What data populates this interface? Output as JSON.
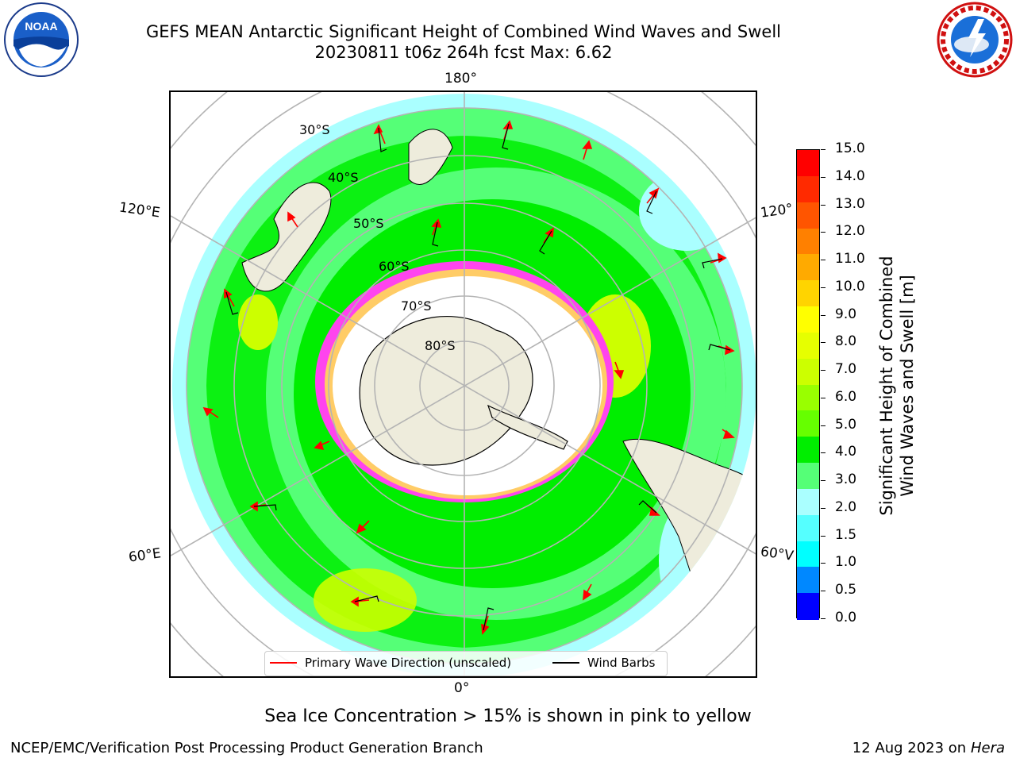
{
  "title_line1": "GEFS MEAN Antarctic Significant Height of Combined Wind Waves and Swell",
  "title_line2": "20230811 t06z 264h fcst   Max: 6.62",
  "logos": {
    "left": "NOAA",
    "right": "NATIONAL WEATHER SERVICE"
  },
  "longitude_labels": {
    "top": "180°",
    "bottom": "0°",
    "upper_left": "120°E",
    "lower_left": "60°E",
    "upper_right": "120°",
    "lower_right": "60°V"
  },
  "latitude_labels": [
    "30°S",
    "40°S",
    "50°S",
    "60°S",
    "70°S",
    "80°S"
  ],
  "legend": {
    "wave_direction": "Primary Wave Direction (unscaled)",
    "wind_barbs": "Wind Barbs"
  },
  "colorbar": {
    "title_line1": "Significant Height of Combined",
    "title_line2": "Wind Waves and Swell [m]",
    "ticks": [
      "15.0",
      "14.0",
      "13.0",
      "12.0",
      "11.0",
      "10.0",
      "9.0",
      "8.0",
      "7.0",
      "6.0",
      "5.0",
      "4.0",
      "3.0",
      "2.0",
      "1.5",
      "1.0",
      "0.5",
      "0.0"
    ],
    "colors": [
      "#ff0000",
      "#ff2a00",
      "#ff5500",
      "#ff8000",
      "#ffaa00",
      "#ffd400",
      "#ffff00",
      "#e6ff00",
      "#ccff00",
      "#99ff00",
      "#66ff00",
      "#00ee00",
      "#55ff77",
      "#aaffff",
      "#55ffff",
      "#00ffff",
      "#0088ff",
      "#0000ff"
    ]
  },
  "map_colors": {
    "land": "#eeecdc",
    "ocean_low": "#aaffff",
    "ocean_mid": "#55ff77",
    "ocean_high": "#00ee00",
    "peak": "#ccff00",
    "ice": "#ff44ee",
    "arrow": "#ff0000",
    "grid": "#b4b4b4"
  },
  "footer_note": "Sea Ice Concentration > 15% is shown in pink to yellow",
  "footer_left": "NCEP/EMC/Verification Post Processing Product Generation Branch",
  "footer_right_date": "12 Aug 2023 on",
  "footer_right_host": "Hera"
}
